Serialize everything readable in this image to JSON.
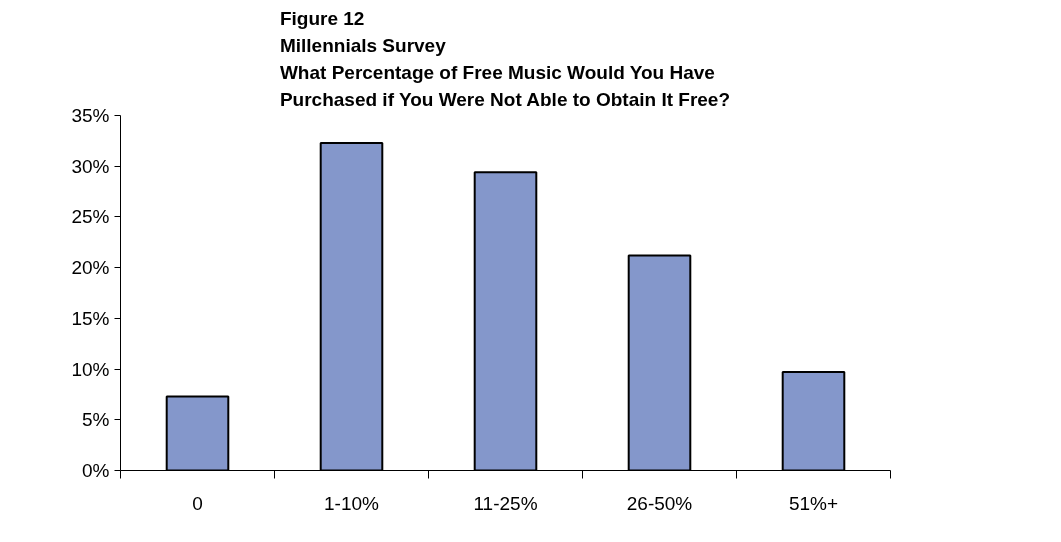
{
  "chart_data": {
    "type": "bar",
    "title": "Figure 12\nMillennials Survey\nWhat Percentage of Free Music Would You Have\nPurchased if You Were Not Able to Obtain It Free?",
    "categories": [
      "0",
      "1-10%",
      "11-25%",
      "26-50%",
      "51%+"
    ],
    "values": [
      7.3,
      32.3,
      29.4,
      21.2,
      9.7
    ],
    "color": "#8497cb",
    "ylim": [
      0,
      35
    ],
    "yticks": [
      {
        "value": 0,
        "label": "0%"
      },
      {
        "value": 5,
        "label": "5%"
      },
      {
        "value": 10,
        "label": "10%"
      },
      {
        "value": 15,
        "label": "15%"
      },
      {
        "value": 20,
        "label": "20%"
      },
      {
        "value": 25,
        "label": "25%"
      },
      {
        "value": 30,
        "label": "30%"
      },
      {
        "value": 35,
        "label": "35%"
      }
    ],
    "grid": false
  }
}
